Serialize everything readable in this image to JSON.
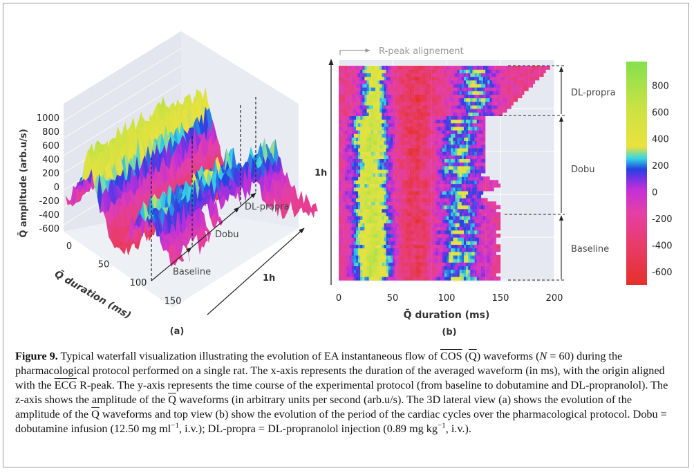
{
  "figure": {
    "panel_a": {
      "label": "(a)",
      "z_axis_label": "Q̄ amplitude (arb.u/s)",
      "z_ticks": [
        "1000",
        "800",
        "600",
        "400",
        "200",
        "0",
        "-200",
        "-400",
        "-600"
      ],
      "x_axis_label": "Q̄ duration (ms)",
      "x_ticks": [
        "0",
        "50",
        "100",
        "150"
      ],
      "time_label": "1h",
      "phases": [
        "Baseline",
        "Dobu",
        "DL-propra"
      ]
    },
    "panel_b": {
      "label": "(b)",
      "top_note": "R-peak alignement",
      "y_label": "1h",
      "x_axis_label": "Q̄ duration (ms)",
      "x_ticks": [
        "0",
        "50",
        "100",
        "150",
        "200"
      ],
      "phases": [
        "DL-propra",
        "Dobu",
        "Baseline"
      ],
      "colorbar_ticks": [
        "800",
        "600",
        "400",
        "200",
        "0",
        "-200",
        "-400",
        "-600"
      ]
    }
  },
  "chart_data": [
    {
      "type": "area",
      "title": "",
      "view": "3D lateral waterfall",
      "xlabel": "Q̄ duration (ms)",
      "zlabel": "Q̄ amplitude (arb.u/s)",
      "ylabel": "1h",
      "xlim": [
        0,
        150
      ],
      "zlim": [
        -600,
        1000
      ],
      "x_ticks": [
        0,
        50,
        100,
        150
      ],
      "z_ticks": [
        1000,
        800,
        600,
        400,
        200,
        0,
        -200,
        -400,
        -600
      ],
      "phase_annotations": [
        "Baseline",
        "Dobu",
        "DL-propra"
      ],
      "grid": true
    },
    {
      "type": "heatmap",
      "title": "",
      "view": "top view",
      "xlabel": "Q̄ duration (ms)",
      "ylabel": "1h",
      "xlim": [
        0,
        200
      ],
      "x_ticks": [
        0,
        50,
        100,
        150,
        200
      ],
      "phase_annotations": [
        "DL-propra",
        "Dobu",
        "Baseline"
      ],
      "colorbar": {
        "range": [
          -700,
          980
        ],
        "ticks": [
          800,
          600,
          400,
          200,
          0,
          -200,
          -400,
          -600
        ],
        "stops": [
          {
            "v": -700,
            "c": "#e5302a"
          },
          {
            "v": -400,
            "c": "#e83c68"
          },
          {
            "v": -150,
            "c": "#e43fa8"
          },
          {
            "v": 20,
            "c": "#c030d8"
          },
          {
            "v": 110,
            "c": "#6a34e4"
          },
          {
            "v": 170,
            "c": "#2244e0"
          },
          {
            "v": 250,
            "c": "#34d4e4"
          },
          {
            "v": 340,
            "c": "#eae23e"
          },
          {
            "v": 620,
            "c": "#cce244"
          },
          {
            "v": 980,
            "c": "#84e04e"
          }
        ]
      },
      "grid": true
    }
  ],
  "caption": {
    "fig_label": "Figure 9.",
    "p1": " Typical waterfall visualization illustrating the evolution of EA instantaneous flow of ",
    "cos": "COS",
    "p2": " (",
    "q1": "Q",
    "p3": ") waveforms (",
    "n": "N",
    "p4": " = 60) during the pharmacological protocol performed on a single rat. The x-axis represents the duration of the averaged waveform (in ms), with the origin aligned with the ",
    "ecg": "ECG",
    "p5": " R-peak. The y-axis represents the time course of the experimental protocol (from baseline to dobutamine and DL-propranolol). The z-axis shows the amplitude of the ",
    "q2": "Q",
    "p6": " waveforms (in arbitrary units per second (arb.u/s). The 3D lateral view (a) shows the evolution of the amplitude of the ",
    "q3": "Q",
    "p7": " waveforms and top view (b) show the evolution of the period of the cardiac cycles over the pharmacological protocol. Dobu = dobutamine infusion (12.50 mg ml",
    "sup1": "−1",
    "p8": ", i.v.); DL-propra = DL-propranolol injection (0.89 mg kg",
    "sup2": "−1",
    "p9": ", i.v.)."
  }
}
